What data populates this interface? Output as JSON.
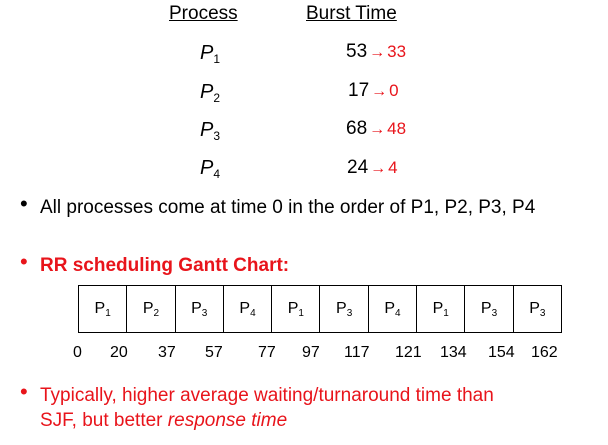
{
  "table": {
    "process_header": "Process",
    "burst_header": "Burst Time",
    "rows": [
      {
        "name": "P",
        "sub": "1",
        "burst": "53",
        "arrow": "→",
        "after": "33"
      },
      {
        "name": "P",
        "sub": "2",
        "burst": "17",
        "arrow": "→",
        "after": "0"
      },
      {
        "name": "P",
        "sub": "3",
        "burst": "68",
        "arrow": "→",
        "after": "48"
      },
      {
        "name": "P",
        "sub": "4",
        "burst": "24",
        "arrow": "→",
        "after": "4"
      }
    ]
  },
  "bullets": {
    "arrival": "All processes come at time 0 in the order of P1, P2, P3, P4",
    "gantt_title": "RR scheduling Gantt Chart:",
    "note_line1": "Typically, higher average waiting/turnaround time than",
    "note_line2_plain": "SJF, but better ",
    "note_line2_italic": "response time"
  },
  "gantt": {
    "cells": [
      {
        "name": "P",
        "sub": "1"
      },
      {
        "name": "P",
        "sub": "2"
      },
      {
        "name": "P",
        "sub": "3"
      },
      {
        "name": "P",
        "sub": "4"
      },
      {
        "name": "P",
        "sub": "1"
      },
      {
        "name": "P",
        "sub": "3"
      },
      {
        "name": "P",
        "sub": "4"
      },
      {
        "name": "P",
        "sub": "1"
      },
      {
        "name": "P",
        "sub": "3"
      },
      {
        "name": "P",
        "sub": "3"
      }
    ],
    "times": [
      "0",
      "20",
      "37",
      "57",
      "77",
      "97",
      "117",
      "121",
      "134",
      "154",
      "162"
    ]
  },
  "colors": {
    "accent_red": "#e8141b",
    "text": "#000000"
  }
}
